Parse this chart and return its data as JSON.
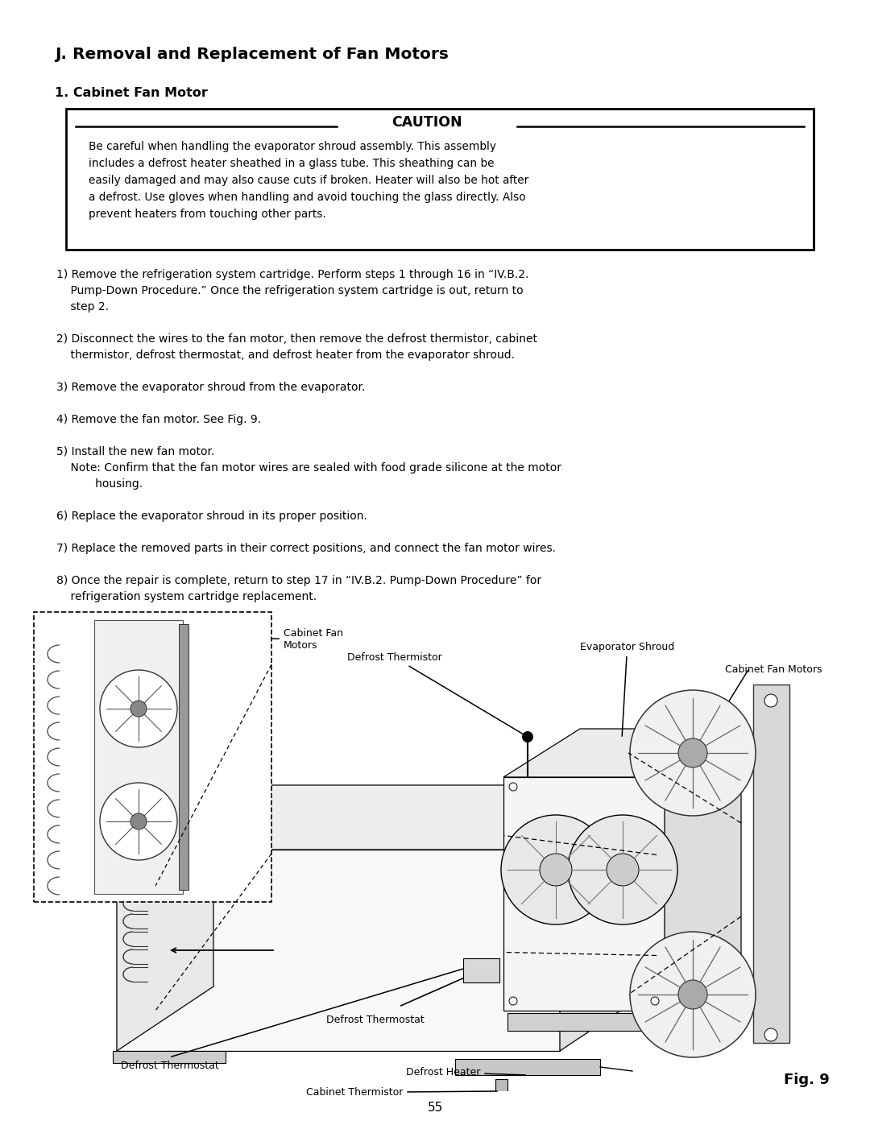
{
  "title": "J. Removal and Replacement of Fan Motors",
  "subtitle": "1. Cabinet Fan Motor",
  "caution_title": "CAUTION",
  "caution_lines": [
    "Be careful when handling the evaporator shroud assembly. This assembly",
    "includes a defrost heater sheathed in a glass tube. This sheathing can be",
    "easily damaged and may also cause cuts if broken. Heater will also be hot after",
    "a defrost. Use gloves when handling and avoid touching the glass directly. Also",
    "prevent heaters from touching other parts."
  ],
  "step1_line1": "1) Remove the refrigeration system cartridge. Perform steps 1 through 16 in “IV.B.2.",
  "step1_line2": "    Pump-Down Procedure.” Once the refrigeration system cartridge is out, return to",
  "step1_line3": "    step 2.",
  "step2_line1": "2) Disconnect the wires to the fan motor, then remove the defrost thermistor, cabinet",
  "step2_line2": "    thermistor, defrost thermostat, and defrost heater from the evaporator shroud.",
  "step3": "3) Remove the evaporator shroud from the evaporator.",
  "step4": "4) Remove the fan motor. See Fig. 9.",
  "step5_line1": "5) Install the new fan motor.",
  "step5_line2": "    Note: Confirm that the fan motor wires are sealed with food grade silicone at the motor",
  "step5_line3": "           housing.",
  "step6": "6) Replace the evaporator shroud in its proper position.",
  "step7": "7) Replace the removed parts in their correct positions, and connect the fan motor wires.",
  "step8_line1": "8) Once the repair is complete, return to step 17 in “IV.B.2. Pump-Down Procedure” for",
  "step8_line2": "    refrigeration system cartridge replacement.",
  "page_number": "55",
  "fig_label": "Fig. 9",
  "label_cabinet_fan": "Cabinet Fan\nMotors",
  "label_defrost_therm": "Defrost Thermistor",
  "label_evap_shroud": "Evaporator Shroud",
  "label_cab_fan_right": "Cabinet Fan Motors",
  "label_defrost_thermostat": "Defrost Thermostat",
  "label_defrost_heater": "Defrost Heater",
  "label_cab_thermistor": "Cabinet Thermistor",
  "bg": "#ffffff",
  "fg": "#000000"
}
